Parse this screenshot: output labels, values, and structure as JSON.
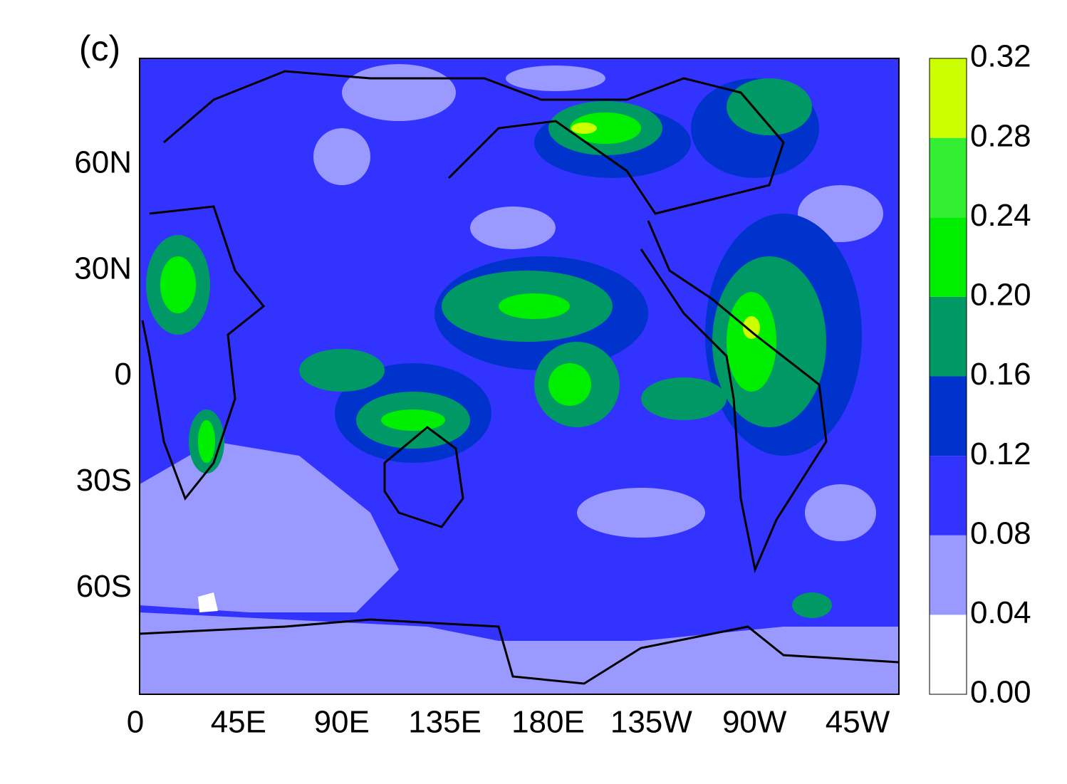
{
  "chart_data": {
    "type": "contour-map",
    "panel_label": "(c)",
    "xlim": [
      0,
      333
    ],
    "ylim": [
      -90,
      90
    ],
    "xticks": [
      0,
      {
        "value": 45,
        "label": "45E"
      },
      {
        "value": 90,
        "label": "90E"
      },
      {
        "value": 135,
        "label": "135E"
      },
      {
        "value": 180,
        "label": "180E"
      },
      {
        "value": 225,
        "label": "135W"
      },
      {
        "value": 270,
        "label": "90W"
      },
      {
        "value": 315,
        "label": "45W"
      }
    ],
    "yticks": [
      {
        "value": 60,
        "label": "60N"
      },
      {
        "value": 30,
        "label": "30N"
      },
      0,
      {
        "value": -30,
        "label": "30S"
      },
      {
        "value": -60,
        "label": "60S"
      }
    ],
    "colorbar": {
      "levels": [
        {
          "value": 0,
          "label": "0.00"
        },
        0.04,
        0.08,
        0.12,
        0.16,
        {
          "value": 0.2,
          "label": "0.20"
        },
        0.24,
        0.28,
        0.32
      ],
      "colors": [
        "#ffffff",
        "#9999ff",
        "#3333ff",
        "#0033cc",
        "#009966",
        "#00ee00",
        "#33ee33",
        "#ccff00"
      ]
    }
  }
}
